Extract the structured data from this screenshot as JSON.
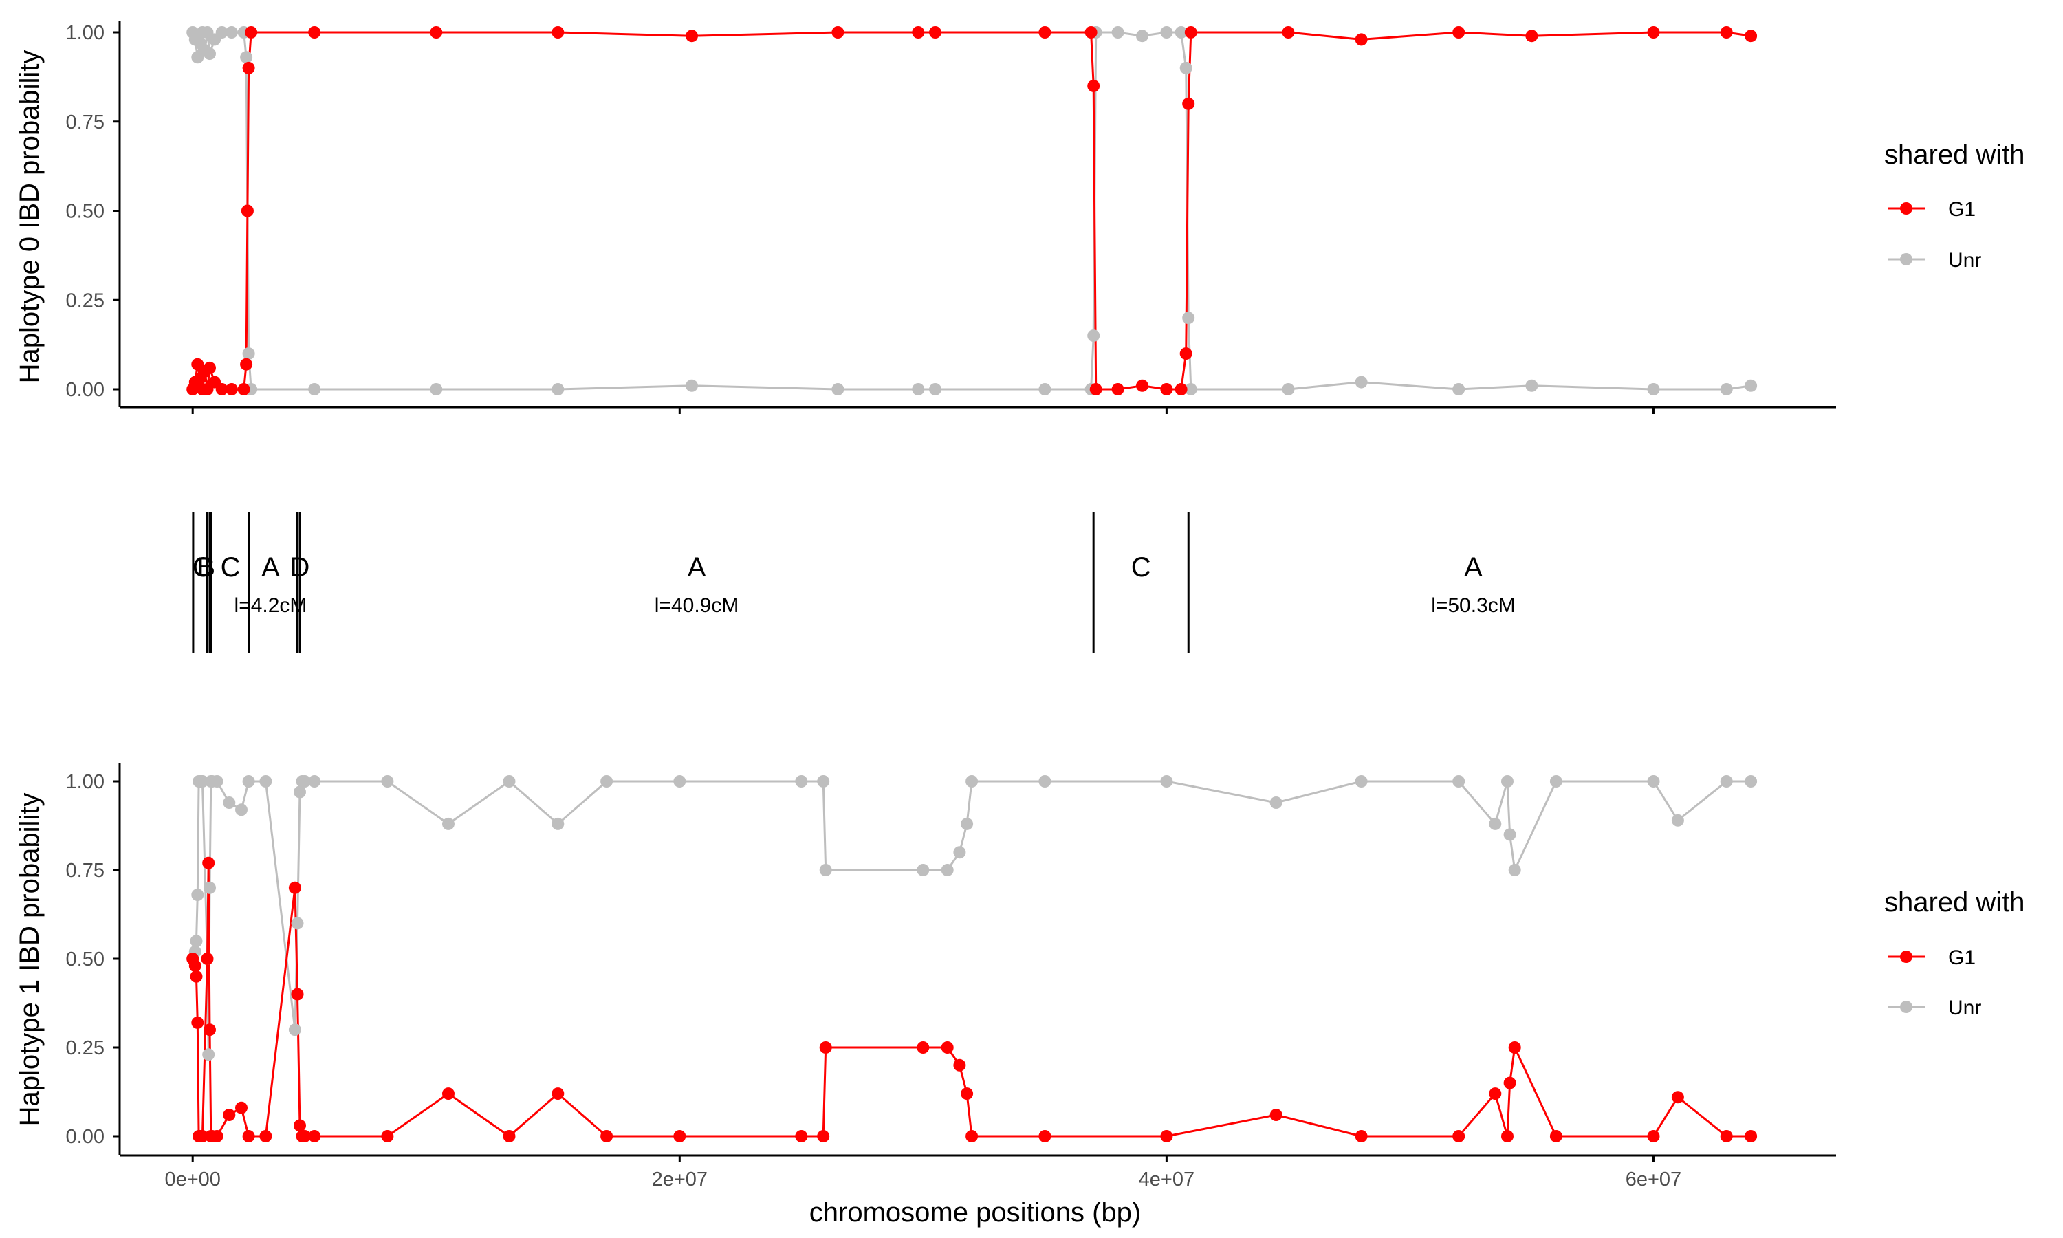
{
  "colors": {
    "g1": "#ff0000",
    "unr": "#bebebe",
    "axis": "#000000",
    "tick_text": "#4d4d4d"
  },
  "x_axis": {
    "title": "chromosome positions (bp)",
    "ticks": [
      0,
      20000000,
      40000000,
      60000000
    ],
    "tick_labels": [
      "0e+00",
      "2e+07",
      "4e+07",
      "6e+07"
    ],
    "xlim": [
      -3000000,
      67500000
    ]
  },
  "y_tick_labels": [
    "0.00",
    "0.25",
    "0.50",
    "0.75",
    "1.00"
  ],
  "legend": {
    "title": "shared with",
    "entries": [
      {
        "label": "G1",
        "color": "#ff0000"
      },
      {
        "label": "Unr",
        "color": "#bebebe"
      }
    ]
  },
  "segments": {
    "boundaries": [
      20000,
      600000,
      700000,
      750000,
      2300000,
      4300000,
      4400000,
      37000000,
      40900000
    ],
    "labels": [
      {
        "letter": "C",
        "x": 400000
      },
      {
        "letter": "B",
        "x": 550000
      },
      {
        "letter": "C",
        "x": 1550000
      },
      {
        "letter": "A",
        "x": 3200000,
        "length": "l=4.2cM"
      },
      {
        "letter": "D",
        "x": 4400000
      },
      {
        "letter": "A",
        "x": 20700000,
        "length": "l=40.9cM"
      },
      {
        "letter": "C",
        "x": 38950000
      },
      {
        "letter": "A",
        "x": 52600000,
        "length": "l=50.3cM"
      }
    ]
  },
  "chart_data": [
    {
      "type": "line",
      "title": "",
      "xlabel": "chromosome positions (bp)",
      "ylabel": "Haplotype 0 IBD probability",
      "ylim": [
        0,
        1
      ],
      "xlim": [
        -3000000,
        67500000
      ],
      "grid": false,
      "legend_position": "right",
      "series": [
        {
          "name": "G1",
          "x": [
            0,
            100000,
            200000,
            300000,
            400000,
            500000,
            600000,
            700000,
            900000,
            1200000,
            1600000,
            2100000,
            2200000,
            2250000,
            2300000,
            2400000,
            5000000,
            10000000,
            15000000,
            20500000,
            26500000,
            29800000,
            30500000,
            35000000,
            36900000,
            37000000,
            37100000,
            38000000,
            39000000,
            40000000,
            40600000,
            40800000,
            40900000,
            41000000,
            45000000,
            48000000,
            52000000,
            55000000,
            60000000,
            63000000,
            64000000
          ],
          "values": [
            0.0,
            0.02,
            0.07,
            0.03,
            0.0,
            0.05,
            0.0,
            0.06,
            0.02,
            0.0,
            0.0,
            0.0,
            0.07,
            0.5,
            0.9,
            1.0,
            1.0,
            1.0,
            1.0,
            0.99,
            1.0,
            1.0,
            1.0,
            1.0,
            1.0,
            0.85,
            0.0,
            0.0,
            0.01,
            0.0,
            0.0,
            0.1,
            0.8,
            1.0,
            1.0,
            0.98,
            1.0,
            0.99,
            1.0,
            1.0,
            0.99
          ]
        },
        {
          "name": "Unr",
          "x": [
            0,
            100000,
            200000,
            300000,
            400000,
            500000,
            600000,
            700000,
            900000,
            1200000,
            1600000,
            2100000,
            2200000,
            2250000,
            2300000,
            2400000,
            5000000,
            10000000,
            15000000,
            20500000,
            26500000,
            29800000,
            30500000,
            35000000,
            36900000,
            37000000,
            37100000,
            38000000,
            39000000,
            40000000,
            40600000,
            40800000,
            40900000,
            41000000,
            45000000,
            48000000,
            52000000,
            55000000,
            60000000,
            63000000,
            64000000
          ],
          "values": [
            1.0,
            0.98,
            0.93,
            0.97,
            1.0,
            0.95,
            1.0,
            0.94,
            0.98,
            1.0,
            1.0,
            1.0,
            0.93,
            0.5,
            0.1,
            0.0,
            0.0,
            0.0,
            0.0,
            0.01,
            0.0,
            0.0,
            0.0,
            0.0,
            0.0,
            0.15,
            1.0,
            1.0,
            0.99,
            1.0,
            1.0,
            0.9,
            0.2,
            0.0,
            0.0,
            0.02,
            0.0,
            0.01,
            0.0,
            0.0,
            0.01
          ]
        }
      ]
    },
    {
      "type": "line",
      "title": "",
      "xlabel": "chromosome positions (bp)",
      "ylabel": "Haplotype 1 IBD probability",
      "ylim": [
        0,
        1
      ],
      "xlim": [
        -3000000,
        67500000
      ],
      "grid": false,
      "legend_position": "right",
      "series": [
        {
          "name": "G1",
          "x": [
            0,
            100000,
            150000,
            200000,
            250000,
            300000,
            350000,
            400000,
            600000,
            650000,
            700000,
            750000,
            800000,
            1000000,
            1500000,
            2000000,
            2300000,
            3000000,
            4200000,
            4300000,
            4400000,
            4500000,
            4600000,
            5000000,
            8000000,
            10500000,
            13000000,
            15000000,
            17000000,
            20000000,
            25000000,
            25900000,
            26000000,
            30000000,
            31000000,
            31500000,
            31800000,
            32000000,
            35000000,
            40000000,
            44500000,
            48000000,
            52000000,
            53500000,
            54000000,
            54100000,
            54300000,
            56000000,
            60000000,
            61000000,
            63000000,
            64000000
          ],
          "values": [
            0.5,
            0.48,
            0.45,
            0.32,
            0.0,
            0.0,
            0.0,
            0.0,
            0.5,
            0.77,
            0.3,
            0.0,
            0.0,
            0.0,
            0.06,
            0.08,
            0.0,
            0.0,
            0.7,
            0.4,
            0.03,
            0.0,
            0.0,
            0.0,
            0.0,
            0.12,
            0.0,
            0.12,
            0.0,
            0.0,
            0.0,
            0.0,
            0.25,
            0.25,
            0.25,
            0.2,
            0.12,
            0.0,
            0.0,
            0.0,
            0.06,
            0.0,
            0.0,
            0.12,
            0.0,
            0.15,
            0.25,
            0.0,
            0.0,
            0.11,
            0.0,
            0.0
          ]
        },
        {
          "name": "Unr",
          "x": [
            0,
            100000,
            150000,
            200000,
            250000,
            300000,
            350000,
            400000,
            600000,
            650000,
            700000,
            750000,
            800000,
            1000000,
            1500000,
            2000000,
            2300000,
            3000000,
            4200000,
            4300000,
            4400000,
            4500000,
            4600000,
            5000000,
            8000000,
            10500000,
            13000000,
            15000000,
            17000000,
            20000000,
            25000000,
            25900000,
            26000000,
            30000000,
            31000000,
            31500000,
            31800000,
            32000000,
            35000000,
            40000000,
            44500000,
            48000000,
            52000000,
            53500000,
            54000000,
            54100000,
            54300000,
            56000000,
            60000000,
            61000000,
            63000000,
            64000000
          ],
          "values": [
            0.5,
            0.52,
            0.55,
            0.68,
            1.0,
            1.0,
            1.0,
            1.0,
            0.5,
            0.23,
            0.7,
            1.0,
            1.0,
            1.0,
            0.94,
            0.92,
            1.0,
            1.0,
            0.3,
            0.6,
            0.97,
            1.0,
            1.0,
            1.0,
            1.0,
            0.88,
            1.0,
            0.88,
            1.0,
            1.0,
            1.0,
            1.0,
            0.75,
            0.75,
            0.75,
            0.8,
            0.88,
            1.0,
            1.0,
            1.0,
            0.94,
            1.0,
            1.0,
            0.88,
            1.0,
            0.85,
            0.75,
            1.0,
            1.0,
            0.89,
            1.0,
            1.0
          ]
        }
      ]
    }
  ]
}
